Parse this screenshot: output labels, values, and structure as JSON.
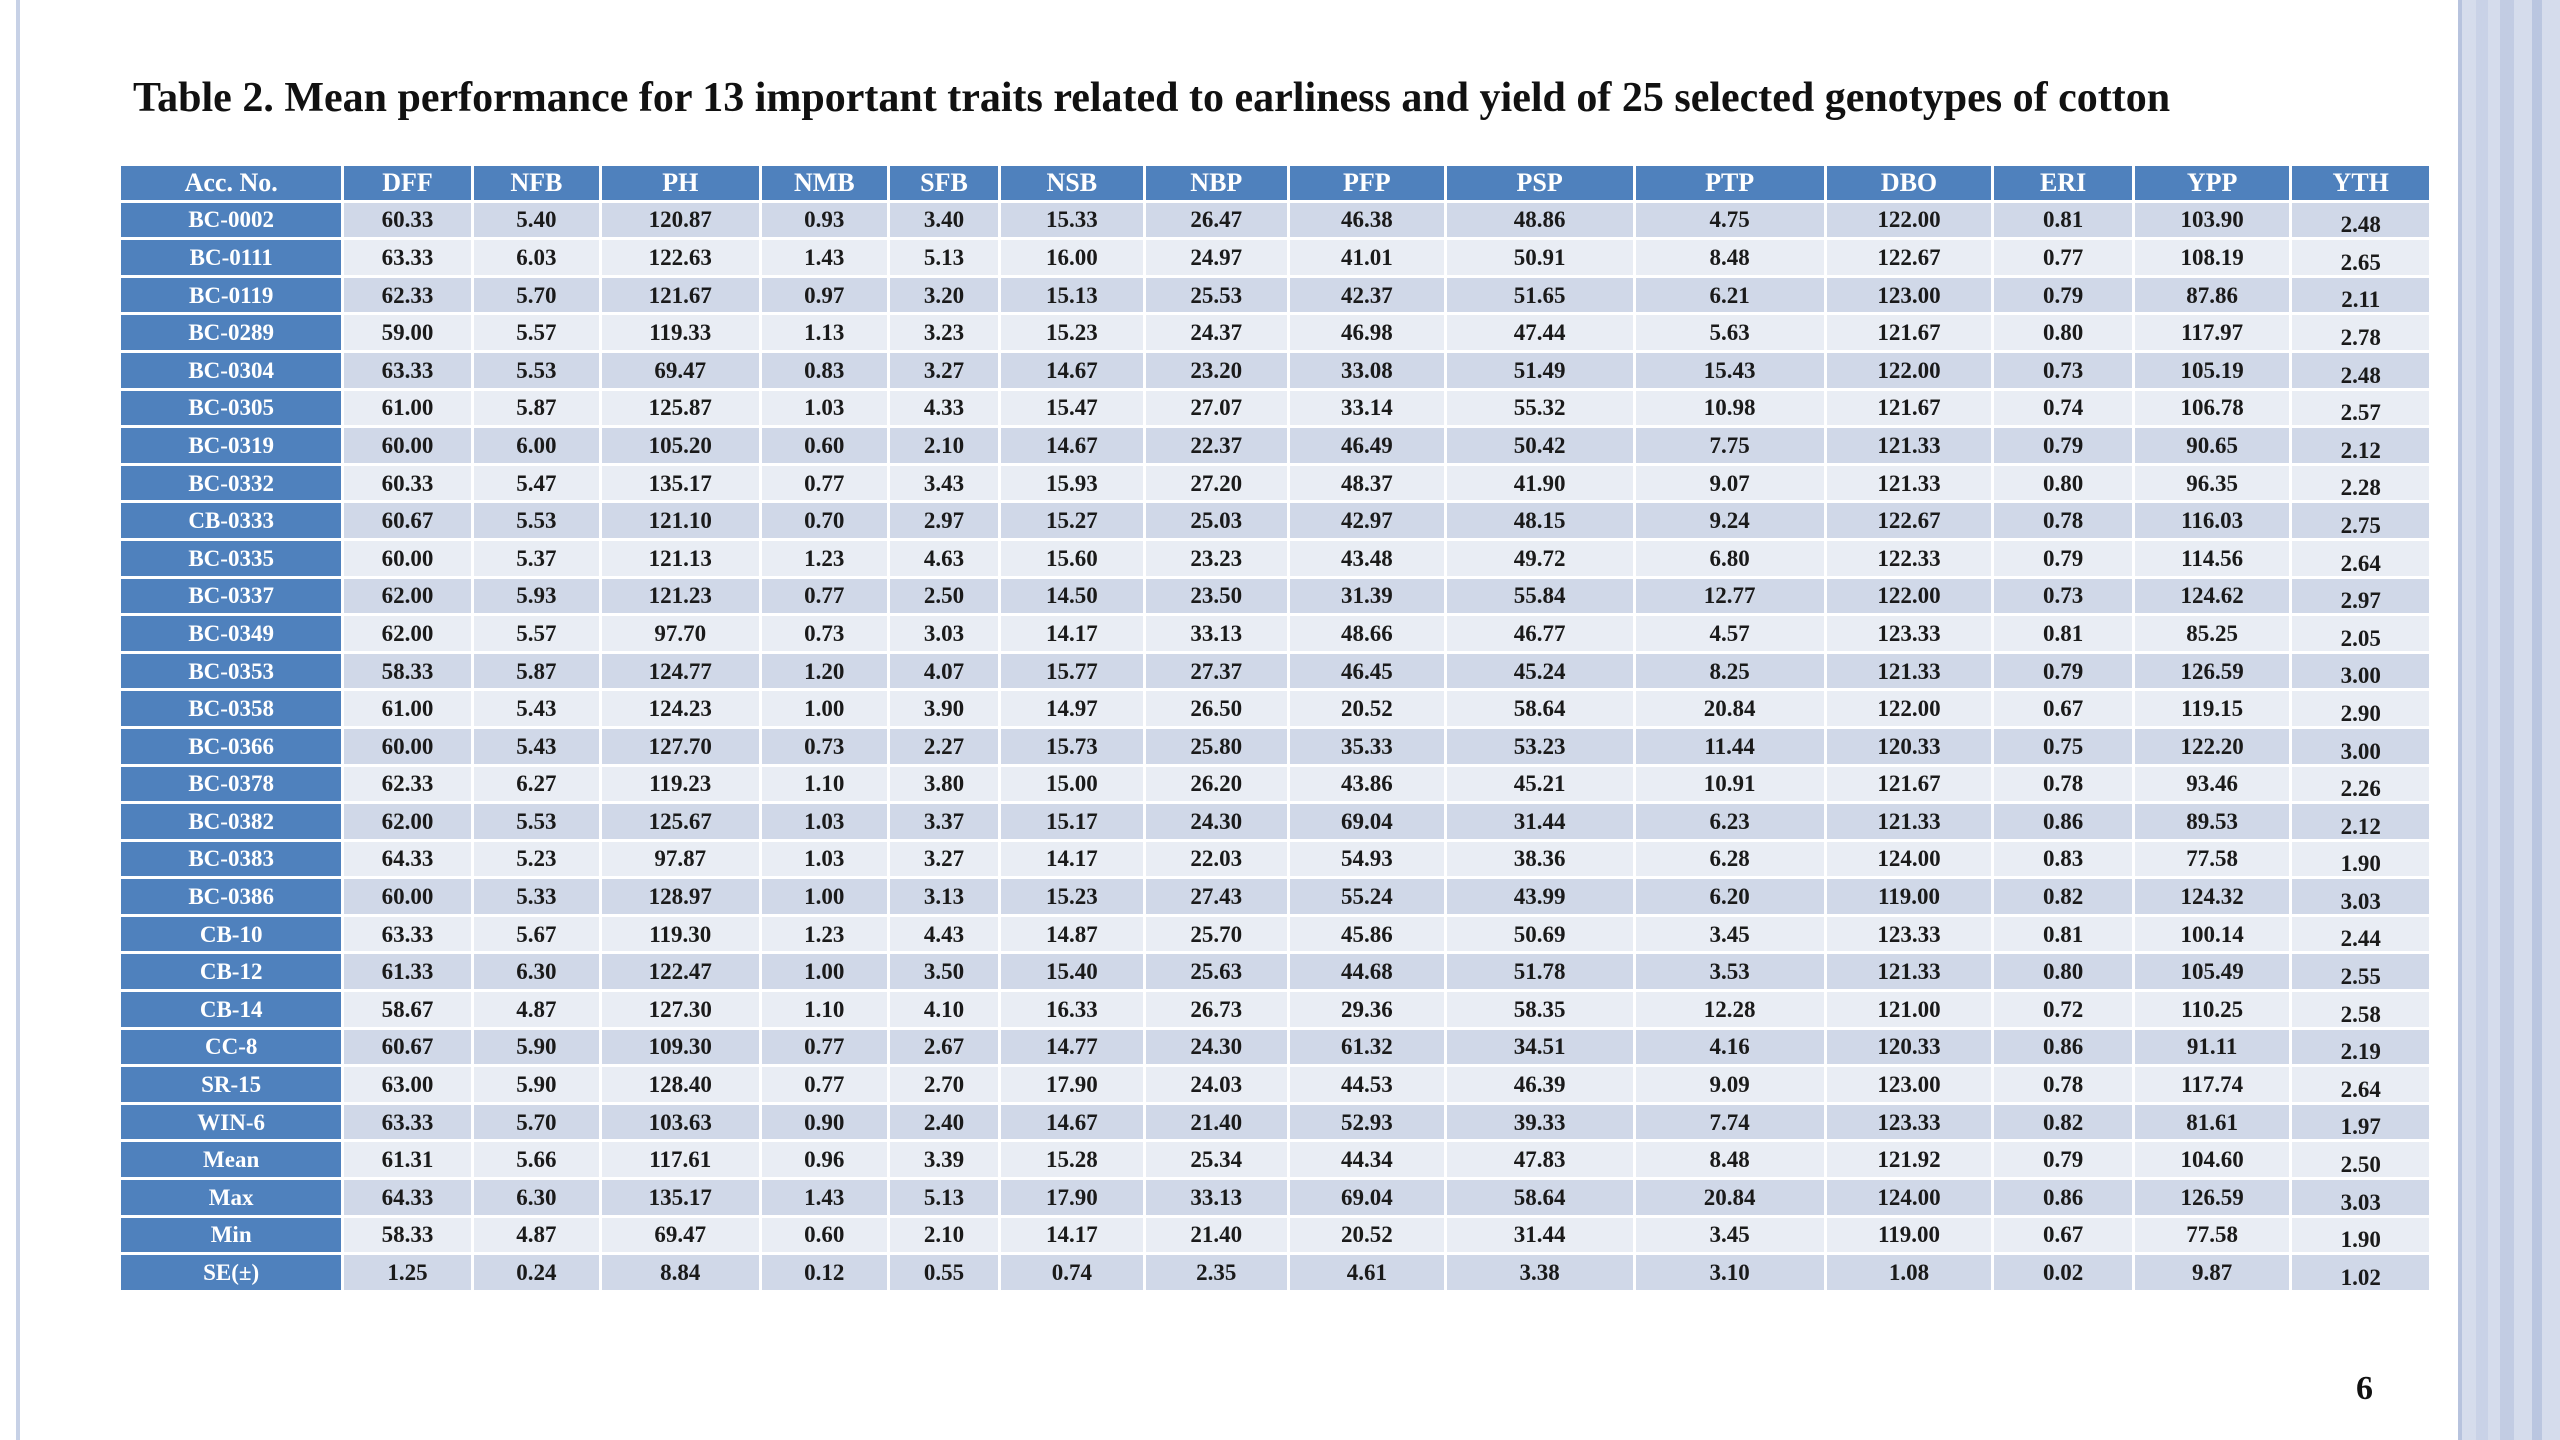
{
  "slide": {
    "title": "Table 2. Mean performance for 13 important traits related to earliness and yield of 25 selected genotypes of cotton",
    "page_number": "6"
  },
  "table": {
    "headers": [
      "Acc. No.",
      "DFF",
      "NFB",
      "PH",
      "NMB",
      "SFB",
      "NSB",
      "NBP",
      "PFP",
      "PSP",
      "PTP",
      "DBO",
      "ERI",
      "YPP",
      "YTH"
    ],
    "rows": [
      [
        "BC-0002",
        "60.33",
        "5.40",
        "120.87",
        "0.93",
        "3.40",
        "15.33",
        "26.47",
        "46.38",
        "48.86",
        "4.75",
        "122.00",
        "0.81",
        "103.90",
        "2.48"
      ],
      [
        "BC-0111",
        "63.33",
        "6.03",
        "122.63",
        "1.43",
        "5.13",
        "16.00",
        "24.97",
        "41.01",
        "50.91",
        "8.48",
        "122.67",
        "0.77",
        "108.19",
        "2.65"
      ],
      [
        "BC-0119",
        "62.33",
        "5.70",
        "121.67",
        "0.97",
        "3.20",
        "15.13",
        "25.53",
        "42.37",
        "51.65",
        "6.21",
        "123.00",
        "0.79",
        "87.86",
        "2.11"
      ],
      [
        "BC-0289",
        "59.00",
        "5.57",
        "119.33",
        "1.13",
        "3.23",
        "15.23",
        "24.37",
        "46.98",
        "47.44",
        "5.63",
        "121.67",
        "0.80",
        "117.97",
        "2.78"
      ],
      [
        "BC-0304",
        "63.33",
        "5.53",
        "69.47",
        "0.83",
        "3.27",
        "14.67",
        "23.20",
        "33.08",
        "51.49",
        "15.43",
        "122.00",
        "0.73",
        "105.19",
        "2.48"
      ],
      [
        "BC-0305",
        "61.00",
        "5.87",
        "125.87",
        "1.03",
        "4.33",
        "15.47",
        "27.07",
        "33.14",
        "55.32",
        "10.98",
        "121.67",
        "0.74",
        "106.78",
        "2.57"
      ],
      [
        "BC-0319",
        "60.00",
        "6.00",
        "105.20",
        "0.60",
        "2.10",
        "14.67",
        "22.37",
        "46.49",
        "50.42",
        "7.75",
        "121.33",
        "0.79",
        "90.65",
        "2.12"
      ],
      [
        "BC-0332",
        "60.33",
        "5.47",
        "135.17",
        "0.77",
        "3.43",
        "15.93",
        "27.20",
        "48.37",
        "41.90",
        "9.07",
        "121.33",
        "0.80",
        "96.35",
        "2.28"
      ],
      [
        "CB-0333",
        "60.67",
        "5.53",
        "121.10",
        "0.70",
        "2.97",
        "15.27",
        "25.03",
        "42.97",
        "48.15",
        "9.24",
        "122.67",
        "0.78",
        "116.03",
        "2.75"
      ],
      [
        "BC-0335",
        "60.00",
        "5.37",
        "121.13",
        "1.23",
        "4.63",
        "15.60",
        "23.23",
        "43.48",
        "49.72",
        "6.80",
        "122.33",
        "0.79",
        "114.56",
        "2.64"
      ],
      [
        "BC-0337",
        "62.00",
        "5.93",
        "121.23",
        "0.77",
        "2.50",
        "14.50",
        "23.50",
        "31.39",
        "55.84",
        "12.77",
        "122.00",
        "0.73",
        "124.62",
        "2.97"
      ],
      [
        "BC-0349",
        "62.00",
        "5.57",
        "97.70",
        "0.73",
        "3.03",
        "14.17",
        "33.13",
        "48.66",
        "46.77",
        "4.57",
        "123.33",
        "0.81",
        "85.25",
        "2.05"
      ],
      [
        "BC-0353",
        "58.33",
        "5.87",
        "124.77",
        "1.20",
        "4.07",
        "15.77",
        "27.37",
        "46.45",
        "45.24",
        "8.25",
        "121.33",
        "0.79",
        "126.59",
        "3.00"
      ],
      [
        "BC-0358",
        "61.00",
        "5.43",
        "124.23",
        "1.00",
        "3.90",
        "14.97",
        "26.50",
        "20.52",
        "58.64",
        "20.84",
        "122.00",
        "0.67",
        "119.15",
        "2.90"
      ],
      [
        "BC-0366",
        "60.00",
        "5.43",
        "127.70",
        "0.73",
        "2.27",
        "15.73",
        "25.80",
        "35.33",
        "53.23",
        "11.44",
        "120.33",
        "0.75",
        "122.20",
        "3.00"
      ],
      [
        "BC-0378",
        "62.33",
        "6.27",
        "119.23",
        "1.10",
        "3.80",
        "15.00",
        "26.20",
        "43.86",
        "45.21",
        "10.91",
        "121.67",
        "0.78",
        "93.46",
        "2.26"
      ],
      [
        "BC-0382",
        "62.00",
        "5.53",
        "125.67",
        "1.03",
        "3.37",
        "15.17",
        "24.30",
        "69.04",
        "31.44",
        "6.23",
        "121.33",
        "0.86",
        "89.53",
        "2.12"
      ],
      [
        "BC-0383",
        "64.33",
        "5.23",
        "97.87",
        "1.03",
        "3.27",
        "14.17",
        "22.03",
        "54.93",
        "38.36",
        "6.28",
        "124.00",
        "0.83",
        "77.58",
        "1.90"
      ],
      [
        "BC-0386",
        "60.00",
        "5.33",
        "128.97",
        "1.00",
        "3.13",
        "15.23",
        "27.43",
        "55.24",
        "43.99",
        "6.20",
        "119.00",
        "0.82",
        "124.32",
        "3.03"
      ],
      [
        "CB-10",
        "63.33",
        "5.67",
        "119.30",
        "1.23",
        "4.43",
        "14.87",
        "25.70",
        "45.86",
        "50.69",
        "3.45",
        "123.33",
        "0.81",
        "100.14",
        "2.44"
      ],
      [
        "CB-12",
        "61.33",
        "6.30",
        "122.47",
        "1.00",
        "3.50",
        "15.40",
        "25.63",
        "44.68",
        "51.78",
        "3.53",
        "121.33",
        "0.80",
        "105.49",
        "2.55"
      ],
      [
        "CB-14",
        "58.67",
        "4.87",
        "127.30",
        "1.10",
        "4.10",
        "16.33",
        "26.73",
        "29.36",
        "58.35",
        "12.28",
        "121.00",
        "0.72",
        "110.25",
        "2.58"
      ],
      [
        "CC-8",
        "60.67",
        "5.90",
        "109.30",
        "0.77",
        "2.67",
        "14.77",
        "24.30",
        "61.32",
        "34.51",
        "4.16",
        "120.33",
        "0.86",
        "91.11",
        "2.19"
      ],
      [
        "SR-15",
        "63.00",
        "5.90",
        "128.40",
        "0.77",
        "2.70",
        "17.90",
        "24.03",
        "44.53",
        "46.39",
        "9.09",
        "123.00",
        "0.78",
        "117.74",
        "2.64"
      ],
      [
        "WIN-6",
        "63.33",
        "5.70",
        "103.63",
        "0.90",
        "2.40",
        "14.67",
        "21.40",
        "52.93",
        "39.33",
        "7.74",
        "123.33",
        "0.82",
        "81.61",
        "1.97"
      ],
      [
        "Mean",
        "61.31",
        "5.66",
        "117.61",
        "0.96",
        "3.39",
        "15.28",
        "25.34",
        "44.34",
        "47.83",
        "8.48",
        "121.92",
        "0.79",
        "104.60",
        "2.50"
      ],
      [
        "Max",
        "64.33",
        "6.30",
        "135.17",
        "1.43",
        "5.13",
        "17.90",
        "33.13",
        "69.04",
        "58.64",
        "20.84",
        "124.00",
        "0.86",
        "126.59",
        "3.03"
      ],
      [
        "Min",
        "58.33",
        "4.87",
        "69.47",
        "0.60",
        "2.10",
        "14.17",
        "21.40",
        "20.52",
        "31.44",
        "3.45",
        "119.00",
        "0.67",
        "77.58",
        "1.90"
      ],
      [
        "SE(±)",
        "1.25",
        "0.24",
        "8.84",
        "0.12",
        "0.55",
        "0.74",
        "2.35",
        "4.61",
        "3.38",
        "3.10",
        "1.08",
        "0.02",
        "9.87",
        "1.02"
      ]
    ]
  },
  "colors": {
    "header_bg": "#4f81bd",
    "row_band_dark": "#d0d8e8",
    "row_band_light": "#e9edf4"
  }
}
